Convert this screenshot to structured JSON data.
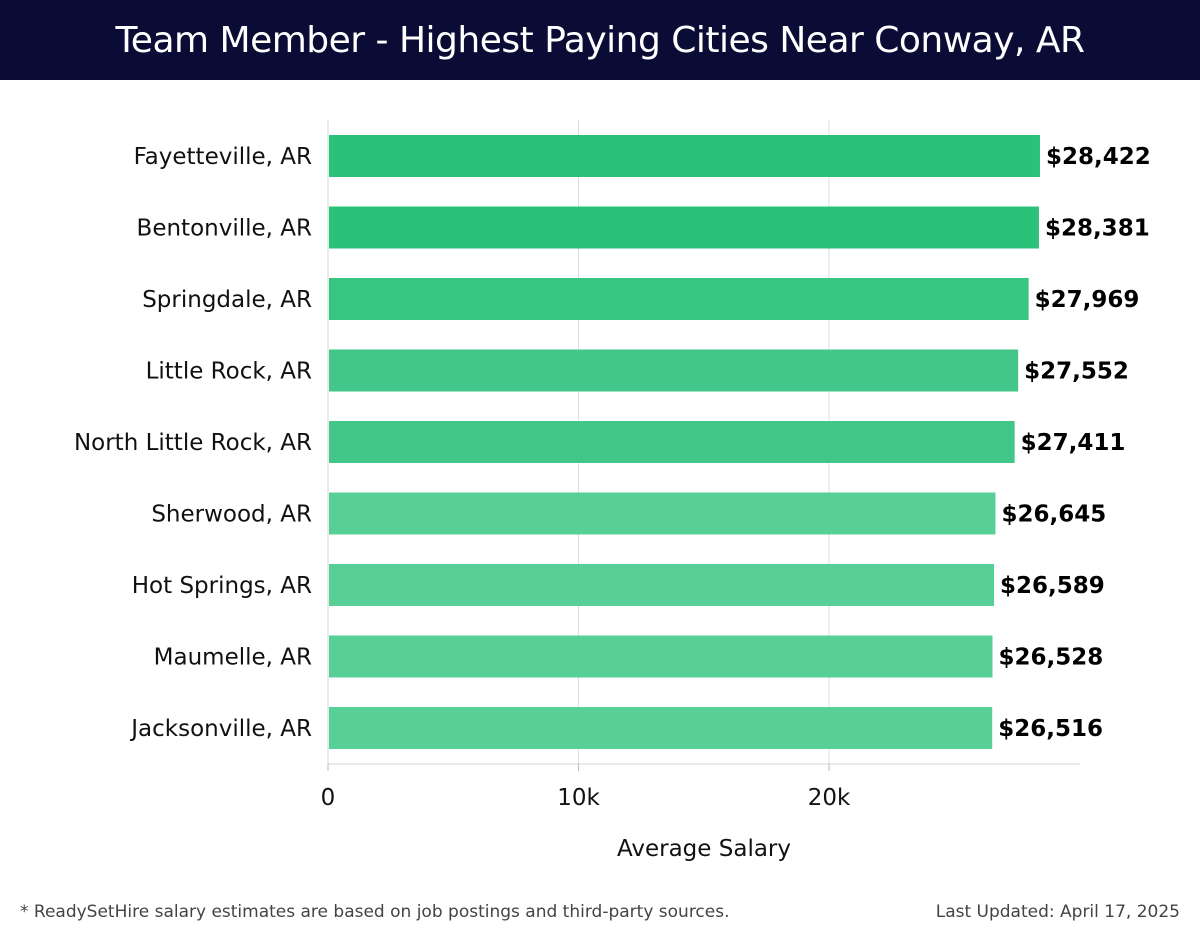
{
  "header": {
    "title": "Team Member - Highest Paying Cities Near Conway, AR"
  },
  "footer": {
    "note": "* ReadySetHire salary estimates are based on job postings and third-party sources.",
    "updated": "Last Updated: April 17, 2025"
  },
  "colors": {
    "header_bg": "#0b0c35",
    "bar_dark": "#2ac178",
    "bar_light": "#58cf97"
  },
  "chart_data": {
    "type": "bar",
    "orientation": "horizontal",
    "title": "Team Member - Highest Paying Cities Near Conway, AR",
    "xlabel": "Average Salary",
    "ylabel": "",
    "xlim": [
      0,
      30000
    ],
    "xticks": [
      0,
      10000,
      20000
    ],
    "xtick_labels": [
      "0",
      "10k",
      "20k"
    ],
    "grid": true,
    "categories": [
      "Fayetteville, AR",
      "Bentonville, AR",
      "Springdale, AR",
      "Little Rock, AR",
      "North Little Rock, AR",
      "Sherwood, AR",
      "Hot Springs, AR",
      "Maumelle, AR",
      "Jacksonville, AR"
    ],
    "values": [
      28422,
      28381,
      27969,
      27552,
      27411,
      26645,
      26589,
      26528,
      26516
    ],
    "value_labels": [
      "$28,422",
      "$28,381",
      "$27,969",
      "$27,552",
      "$27,411",
      "$26,645",
      "$26,589",
      "$26,528",
      "$26,516"
    ]
  }
}
